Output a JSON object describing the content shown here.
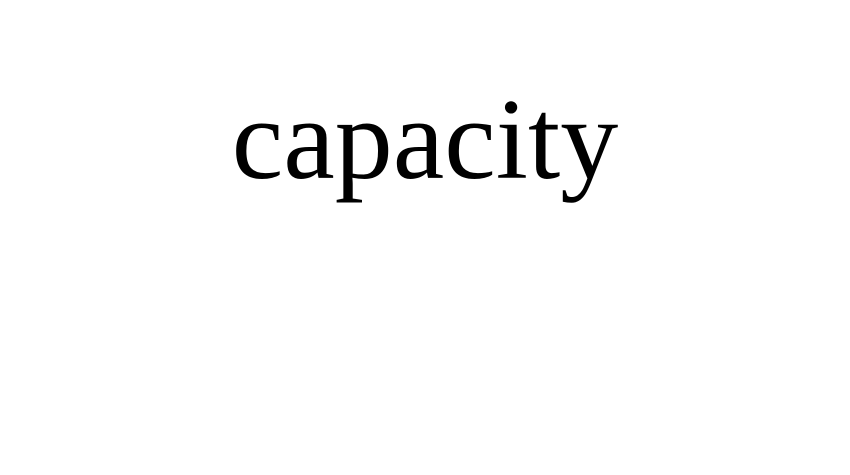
{
  "word": "capacity",
  "colors": {
    "background": "#ffffff",
    "text": "#000000"
  }
}
